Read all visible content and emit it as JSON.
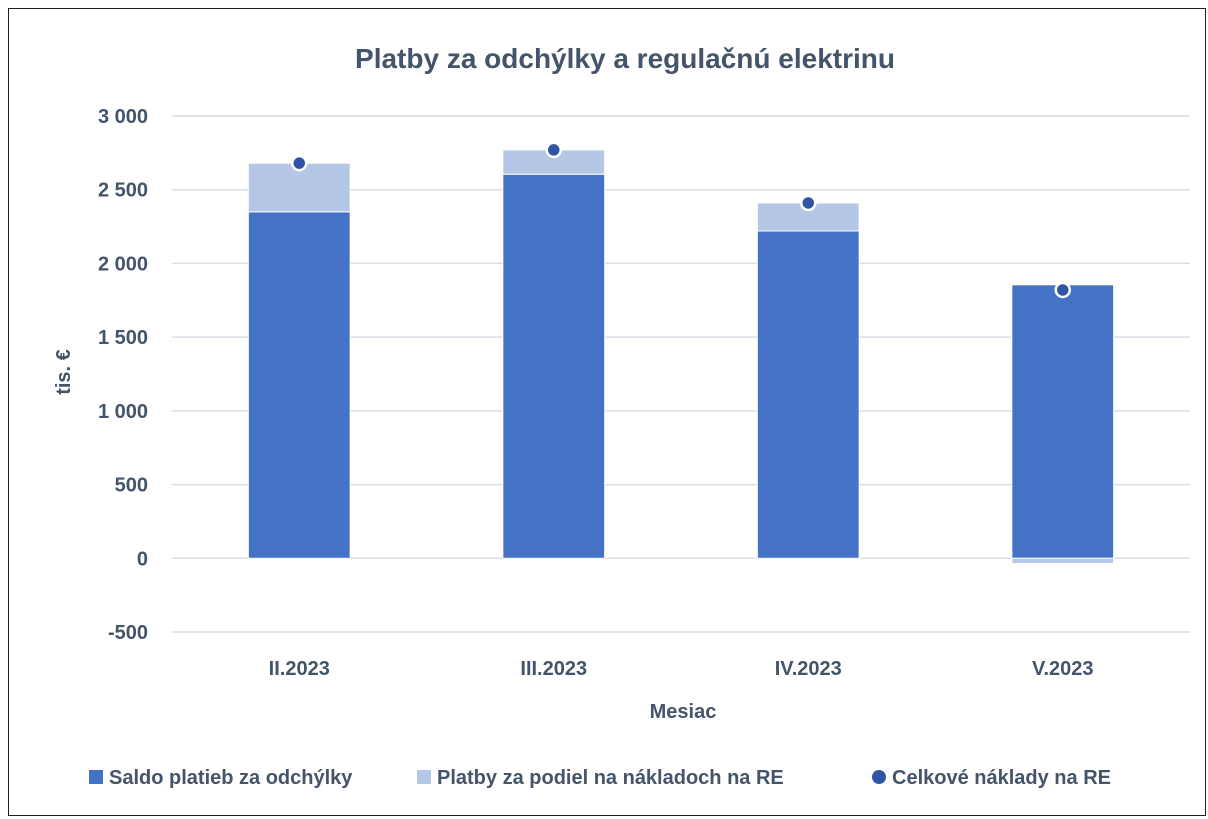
{
  "chart_data": {
    "type": "bar",
    "stacked": true,
    "title": "Platby za odchýlky a regulačnú elektrinu",
    "xlabel": "Mesiac",
    "ylabel": "tis. €",
    "ylim": [
      -500,
      3000
    ],
    "yticks": [
      3000,
      2500,
      2000,
      1500,
      1000,
      500,
      0,
      -500
    ],
    "ytick_labels": [
      "3 000",
      "2 500",
      "2 000",
      "1 500",
      "1 000",
      "500",
      "0",
      "-500"
    ],
    "categories": [
      "II.2023",
      "III.2023",
      "IV.2023",
      "V.2023"
    ],
    "grid": true,
    "legend_position": "bottom",
    "series": [
      {
        "name": "Saldo platieb za odchýlky",
        "kind": "bar",
        "color": "#4472c4",
        "values": [
          2350,
          2605,
          2220,
          1855
        ]
      },
      {
        "name": "Platby za podiel na nákladoch na RE",
        "kind": "bar",
        "color": "#b4c7e7",
        "values": [
          330,
          165,
          190,
          -35
        ]
      },
      {
        "name": "Celkové náklady na RE",
        "kind": "marker",
        "color": "#2f55a4",
        "values": [
          2680,
          2770,
          2410,
          1820
        ]
      }
    ]
  }
}
